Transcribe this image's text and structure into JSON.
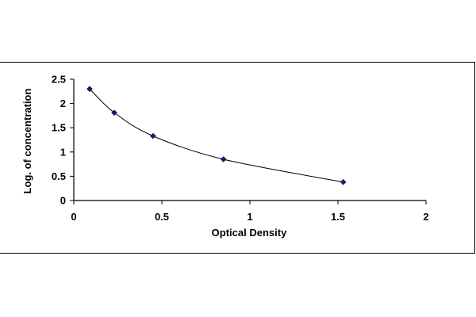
{
  "chart_data": {
    "type": "scatter",
    "title": "",
    "xlabel": "Optical Density",
    "ylabel": "Log. of concentration",
    "xlim": [
      0,
      2
    ],
    "ylim": [
      0,
      2.5
    ],
    "x_ticks": [
      0,
      0.5,
      1,
      1.5,
      2
    ],
    "x_tick_labels": [
      "0",
      "0.5",
      "1",
      "1.5",
      "2"
    ],
    "y_ticks": [
      0,
      0.5,
      1,
      1.5,
      2,
      2.5
    ],
    "y_tick_labels": [
      "0",
      "0.5",
      "1",
      "1.5",
      "2",
      "2.5"
    ],
    "grid": false,
    "legend": "none",
    "series": [
      {
        "x": [
          0.09,
          0.23,
          0.45,
          0.85,
          1.53
        ],
        "y": [
          2.3,
          1.81,
          1.33,
          0.85,
          0.38
        ],
        "marker": "diamond",
        "line": "smooth",
        "color": "#1a1a6e"
      }
    ]
  }
}
